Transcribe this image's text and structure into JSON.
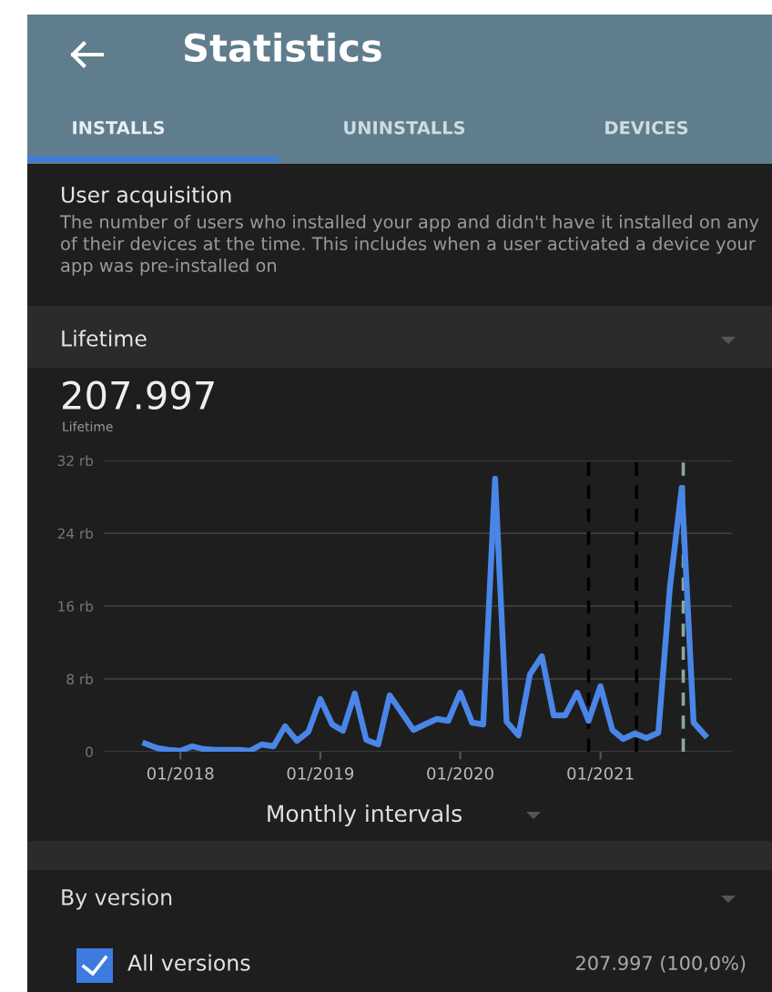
{
  "chart_data": {
    "type": "line",
    "title": "Statistics",
    "annotations": [
      "INSTALLS",
      "UNINSTALLS",
      "DEVICES",
      "User acquisition",
      "The number of users who installed your app and didn't have it installed on any of their devices at the time. This includes when a user activated a device your app was pre-installed on",
      "Lifetime",
      "207.997",
      "Lifetime",
      "Monthly intervals",
      "By version",
      "All versions",
      "207.997 (100,0%)"
    ],
    "x": [
      "2017-10",
      "2017-11",
      "2017-12",
      "2018-01",
      "2018-02",
      "2018-03",
      "2018-04",
      "2018-05",
      "2018-06",
      "2018-07",
      "2018-08",
      "2018-09",
      "2018-10",
      "2018-11",
      "2018-12",
      "2019-01",
      "2019-02",
      "2019-03",
      "2019-04",
      "2019-05",
      "2019-06",
      "2019-07",
      "2019-08",
      "2019-09",
      "2019-10",
      "2019-11",
      "2019-12",
      "2020-01",
      "2020-02",
      "2020-03",
      "2020-04",
      "2020-05",
      "2020-06",
      "2020-07",
      "2020-08",
      "2020-09",
      "2020-10",
      "2020-11",
      "2020-12",
      "2021-01",
      "2021-02",
      "2021-03",
      "2021-04",
      "2021-05",
      "2021-06",
      "2021-07",
      "2021-08",
      "2021-09",
      "2021-10"
    ],
    "values": [
      0.9,
      0.4,
      0.2,
      0.1,
      0.6,
      0.3,
      0.2,
      0.2,
      0.2,
      0.1,
      0.8,
      0.6,
      2.8,
      1.2,
      2.2,
      5.8,
      3.0,
      2.3,
      6.4,
      1.3,
      0.8,
      6.2,
      4.3,
      2.4,
      3.0,
      3.6,
      3.4,
      6.5,
      3.2,
      3.0,
      30.0,
      3.3,
      1.8,
      8.5,
      10.5,
      4.0,
      4.0,
      6.5,
      3.4,
      7.2,
      2.4,
      1.4,
      2.0,
      1.5,
      2.1,
      18.0,
      29.0,
      3.2,
      1.8
    ],
    "color": "#4a86e8",
    "xlim": [
      "2017-06-15",
      "2021-12-10"
    ],
    "xticks": [
      {
        "value": "2018-01-01",
        "label": "01/2018"
      },
      {
        "value": "2019-01-01",
        "label": "01/2019"
      },
      {
        "value": "2020-01-01",
        "label": "01/2020"
      },
      {
        "value": "2021-01-01",
        "label": "01/2021"
      }
    ],
    "ylim": [
      0,
      32
    ],
    "yticks": [
      0,
      {
        "value": 8,
        "label": "8 rb"
      },
      {
        "value": 16,
        "label": "16 rb"
      },
      {
        "value": 24,
        "label": "24 rb"
      },
      {
        "value": 32,
        "label": "32 rb"
      }
    ],
    "grid": "y",
    "legend": false,
    "marker": "none",
    "line_style": "solid",
    "ref_lines": [
      {
        "axis": "x",
        "value": "2020-12-01",
        "color": "#000000",
        "line_style": "dashed"
      },
      {
        "axis": "x",
        "value": "2021-04-05",
        "color": "#000000",
        "line_style": "dashed"
      },
      {
        "axis": "x",
        "value": "2021-08-05",
        "color": "#8aa8a0",
        "line_style": "dashed"
      }
    ]
  }
}
